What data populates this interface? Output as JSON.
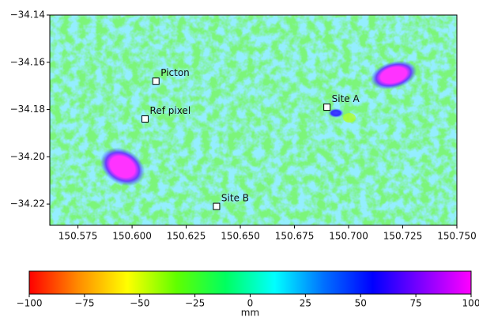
{
  "chart_data": {
    "type": "raster-map",
    "xlim": [
      150.562,
      150.75
    ],
    "ylim": [
      -34.229,
      -34.14
    ],
    "xticks": [
      {
        "value": 150.575,
        "label": "150.575"
      },
      {
        "value": 150.6,
        "label": "150.600"
      },
      {
        "value": 150.625,
        "label": "150.625"
      },
      {
        "value": 150.65,
        "label": "150.650"
      },
      {
        "value": 150.675,
        "label": "150.675"
      },
      {
        "value": 150.7,
        "label": "150.700"
      },
      {
        "value": 150.725,
        "label": "150.725"
      },
      {
        "value": 150.75,
        "label": "150.750"
      }
    ],
    "yticks": [
      {
        "value": -34.14,
        "label": "−34.14"
      },
      {
        "value": -34.16,
        "label": "−34.16"
      },
      {
        "value": -34.18,
        "label": "−34.18"
      },
      {
        "value": -34.2,
        "label": "−34.20"
      },
      {
        "value": -34.22,
        "label": "−34.22"
      }
    ],
    "markers": [
      {
        "label": "Picton",
        "x": 150.611,
        "y": -34.168
      },
      {
        "label": "Ref pixel",
        "x": 150.606,
        "y": -34.184
      },
      {
        "label": "Site A",
        "x": 150.69,
        "y": -34.179
      },
      {
        "label": "Site B",
        "x": 150.639,
        "y": -34.221
      }
    ],
    "colorbar": {
      "label": "mm",
      "lim": [
        -100,
        100
      ],
      "ticks": [
        {
          "value": -100,
          "label": "−100"
        },
        {
          "value": -75,
          "label": "−75"
        },
        {
          "value": -50,
          "label": "−50"
        },
        {
          "value": -25,
          "label": "−25"
        },
        0,
        25,
        50,
        75,
        100
      ],
      "colors": [
        "#ff0000",
        "#ff8c00",
        "#ffff00",
        "#60ff00",
        "#00ff60",
        "#00ffff",
        "#0070ff",
        "#0000ff",
        "#8000ff",
        "#ff00ff"
      ]
    }
  }
}
